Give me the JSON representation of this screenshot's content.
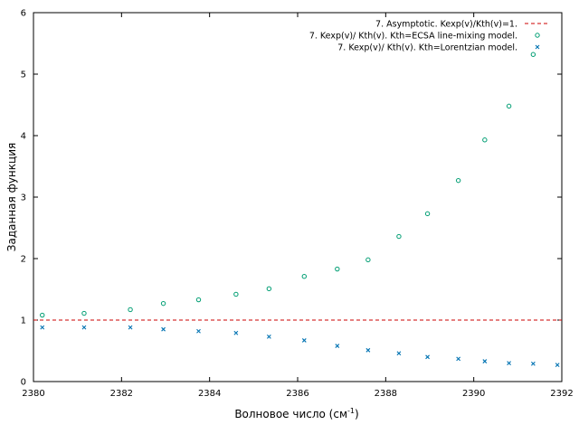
{
  "chart_data": {
    "type": "scatter",
    "xlabel": "Волновое число (см",
    "xlabel_sup": "-1",
    "xlabel_close": ")",
    "ylabel": "Заданная функция",
    "xlim": [
      2380,
      2392
    ],
    "ylim": [
      0,
      6
    ],
    "xticks": [
      "2380",
      "2382",
      "2384",
      "2386",
      "2388",
      "2390",
      "2392"
    ],
    "yticks": [
      "0",
      "1",
      "2",
      "3",
      "4",
      "5",
      "6"
    ],
    "grid": false,
    "legend_position": "top-right",
    "series": [
      {
        "name": "7. Asymptotic. Kexp(v)/Kth(v)=1.",
        "style": "dashed-line",
        "color": "#cc0000",
        "x": [
          2380,
          2392
        ],
        "y": [
          1,
          1
        ]
      },
      {
        "name": "7. Kexp(v)/ Kth(v). Kth=ECSA line-mixing model.",
        "style": "open-circle",
        "color": "#009e73",
        "x": [
          2380.2,
          2381.15,
          2382.2,
          2382.95,
          2383.75,
          2384.6,
          2385.35,
          2386.15,
          2386.9,
          2387.6,
          2388.3,
          2388.95,
          2389.65,
          2390.25,
          2390.8,
          2391.35
        ],
        "y": [
          1.08,
          1.11,
          1.17,
          1.27,
          1.33,
          1.42,
          1.51,
          1.71,
          1.83,
          1.98,
          2.36,
          2.73,
          3.27,
          3.93,
          4.48,
          5.32
        ]
      },
      {
        "name": "7. Kexp(v)/ Kth(v). Kth=Lorentzian model.",
        "style": "cross",
        "color": "#0072b2",
        "x": [
          2380.2,
          2381.15,
          2382.2,
          2382.95,
          2383.75,
          2384.6,
          2385.35,
          2386.15,
          2386.9,
          2387.6,
          2388.3,
          2388.95,
          2389.65,
          2390.25,
          2390.8,
          2391.35,
          2391.9
        ],
        "y": [
          0.88,
          0.88,
          0.88,
          0.85,
          0.82,
          0.79,
          0.73,
          0.67,
          0.58,
          0.51,
          0.46,
          0.4,
          0.37,
          0.33,
          0.3,
          0.29,
          0.27
        ]
      }
    ]
  }
}
